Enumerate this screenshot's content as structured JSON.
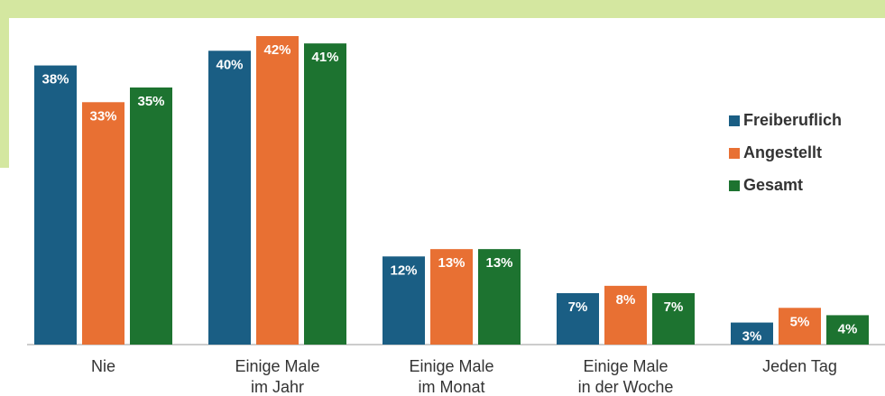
{
  "chart_data": {
    "type": "bar",
    "categories": [
      "Nie",
      "Einige Male\nim Jahr",
      "Einige Male\nim Monat",
      "Einige Male\nin der Woche",
      "Jeden Tag"
    ],
    "series": [
      {
        "name": "Freiberuflich",
        "color": "#1a5e84",
        "values": [
          38,
          40,
          12,
          7,
          3
        ],
        "value_labels": [
          "38%",
          "40%",
          "12%",
          "7%",
          "3%"
        ]
      },
      {
        "name": "Angestellt",
        "color": "#e87033",
        "values": [
          33,
          42,
          13,
          8,
          5
        ],
        "value_labels": [
          "33%",
          "42%",
          "13%",
          "8%",
          "5%"
        ]
      },
      {
        "name": "Gesamt",
        "color": "#1d7330",
        "values": [
          35,
          41,
          13,
          7,
          4
        ],
        "value_labels": [
          "35%",
          "41%",
          "13%",
          "7%",
          "4%"
        ]
      }
    ],
    "legend": "right"
  }
}
